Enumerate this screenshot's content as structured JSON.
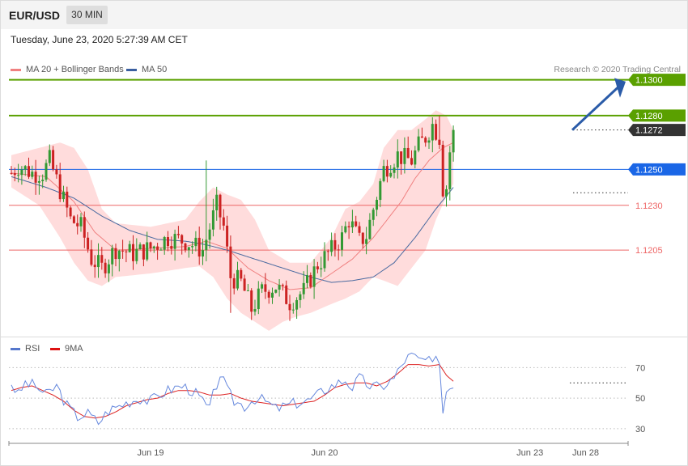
{
  "header": {
    "symbol": "EUR/USD",
    "timeframe": "30 MIN",
    "datetime": "Tuesday, June 23, 2020 5:27:39 AM CET"
  },
  "legend": {
    "ma20": "MA 20 + Bollinger Bands",
    "ma50": "MA 50",
    "credit": "Research © 2020 Trading Central"
  },
  "rsi_legend": {
    "rsi": "RSI",
    "ma9": "9MA"
  },
  "colors": {
    "up": "#339933",
    "down": "#cc2222",
    "resistance": "#5aa000",
    "support": "#ee6666",
    "pivot": "#1a66e6",
    "bands": "#ffd6d6",
    "ma20": "#f08080",
    "ma50": "#4a6aa0",
    "rsi": "#6688dd",
    "rsi_ma": "#dd2222",
    "arrow": "#2a5ba8",
    "current": "#333333"
  },
  "chart_data": [
    {
      "type": "candlestick",
      "symbol": "EUR/USD",
      "timeframe": "30 MIN",
      "x_labels": [
        "Jun 19",
        "Jun 20",
        "Jun 23",
        "Jun 28"
      ],
      "ylim": [
        1.1155,
        1.1312
      ],
      "levels": [
        {
          "label": "1.1300",
          "value": 1.13,
          "kind": "resistance"
        },
        {
          "label": "1.1280",
          "value": 1.128,
          "kind": "resistance"
        },
        {
          "label": "1.1272",
          "value": 1.1272,
          "kind": "current"
        },
        {
          "label": "1.1250",
          "value": 1.125,
          "kind": "pivot"
        },
        {
          "label": "1.1230",
          "value": 1.123,
          "kind": "support"
        },
        {
          "label": "1.1205",
          "value": 1.1205,
          "kind": "support"
        }
      ],
      "waypoints": [
        [
          0,
          1.1248
        ],
        [
          2,
          1.1252
        ],
        [
          6,
          1.1248
        ],
        [
          9,
          1.1248
        ],
        [
          11,
          1.1255
        ],
        [
          13,
          1.1244
        ],
        [
          17,
          1.1222
        ],
        [
          20,
          1.1218
        ],
        [
          23,
          1.12
        ],
        [
          26,
          1.1195
        ],
        [
          30,
          1.1206
        ],
        [
          35,
          1.1203
        ],
        [
          40,
          1.1206
        ],
        [
          45,
          1.1212
        ],
        [
          50,
          1.121
        ],
        [
          55,
          1.1205
        ],
        [
          59,
          1.123
        ],
        [
          61,
          1.1218
        ],
        [
          63,
          1.119
        ],
        [
          66,
          1.1187
        ],
        [
          69,
          1.1172
        ],
        [
          72,
          1.1182
        ],
        [
          76,
          1.1185
        ],
        [
          80,
          1.1176
        ],
        [
          84,
          1.1182
        ],
        [
          88,
          1.1197
        ],
        [
          92,
          1.1205
        ],
        [
          95,
          1.1212
        ],
        [
          97,
          1.1222
        ],
        [
          100,
          1.121
        ],
        [
          102,
          1.1213
        ],
        [
          104,
          1.1228
        ],
        [
          107,
          1.125
        ],
        [
          109,
          1.1254
        ],
        [
          111,
          1.1258
        ],
        [
          113,
          1.1256
        ],
        [
          115,
          1.1255
        ],
        [
          117,
          1.1263
        ],
        [
          119,
          1.1268
        ],
        [
          121,
          1.1275
        ],
        [
          123,
          1.1268
        ],
        [
          124,
          1.1235
        ],
        [
          125,
          1.124
        ],
        [
          126,
          1.126
        ],
        [
          127,
          1.1272
        ]
      ],
      "bands": {
        "upper": [
          [
            0,
            1.1258
          ],
          [
            8,
            1.1262
          ],
          [
            14,
            1.1265
          ],
          [
            18,
            1.1262
          ],
          [
            22,
            1.125
          ],
          [
            26,
            1.1228
          ],
          [
            30,
            1.122
          ],
          [
            40,
            1.1218
          ],
          [
            50,
            1.1222
          ],
          [
            54,
            1.1232
          ],
          [
            58,
            1.124
          ],
          [
            62,
            1.1236
          ],
          [
            66,
            1.1233
          ],
          [
            70,
            1.1222
          ],
          [
            74,
            1.1205
          ],
          [
            80,
            1.1198
          ],
          [
            86,
            1.1198
          ],
          [
            92,
            1.1212
          ],
          [
            96,
            1.1228
          ],
          [
            100,
            1.1232
          ],
          [
            104,
            1.1242
          ],
          [
            107,
            1.1262
          ],
          [
            111,
            1.1272
          ],
          [
            115,
            1.1272
          ],
          [
            119,
            1.1278
          ],
          [
            122,
            1.1283
          ],
          [
            125,
            1.128
          ],
          [
            127,
            1.1272
          ]
        ],
        "lower": [
          [
            0,
            1.124
          ],
          [
            8,
            1.123
          ],
          [
            14,
            1.1212
          ],
          [
            18,
            1.1198
          ],
          [
            22,
            1.1188
          ],
          [
            26,
            1.1185
          ],
          [
            30,
            1.119
          ],
          [
            40,
            1.1192
          ],
          [
            50,
            1.1195
          ],
          [
            54,
            1.1196
          ],
          [
            58,
            1.119
          ],
          [
            62,
            1.1178
          ],
          [
            66,
            1.117
          ],
          [
            70,
            1.1165
          ],
          [
            74,
            1.116
          ],
          [
            78,
            1.1165
          ],
          [
            82,
            1.1168
          ],
          [
            86,
            1.117
          ],
          [
            92,
            1.1175
          ],
          [
            96,
            1.1178
          ],
          [
            100,
            1.1182
          ],
          [
            104,
            1.119
          ],
          [
            107,
            1.1188
          ],
          [
            111,
            1.1185
          ],
          [
            115,
            1.1195
          ],
          [
            119,
            1.1205
          ],
          [
            122,
            1.1222
          ],
          [
            125,
            1.1235
          ],
          [
            127,
            1.1242
          ]
        ],
        "ma20": [
          [
            0,
            1.1248
          ],
          [
            10,
            1.1246
          ],
          [
            18,
            1.1232
          ],
          [
            24,
            1.1215
          ],
          [
            30,
            1.1205
          ],
          [
            40,
            1.1206
          ],
          [
            50,
            1.1207
          ],
          [
            56,
            1.121
          ],
          [
            62,
            1.1206
          ],
          [
            68,
            1.1195
          ],
          [
            74,
            1.1188
          ],
          [
            80,
            1.1183
          ],
          [
            86,
            1.1184
          ],
          [
            92,
            1.1192
          ],
          [
            98,
            1.12
          ],
          [
            104,
            1.1212
          ],
          [
            108,
            1.1222
          ],
          [
            112,
            1.1232
          ],
          [
            116,
            1.1245
          ],
          [
            120,
            1.1255
          ],
          [
            124,
            1.1262
          ],
          [
            127,
            1.1265
          ]
        ],
        "ma50": [
          [
            0,
            1.1246
          ],
          [
            10,
            1.124
          ],
          [
            18,
            1.1234
          ],
          [
            26,
            1.1224
          ],
          [
            34,
            1.1216
          ],
          [
            42,
            1.1211
          ],
          [
            50,
            1.121
          ],
          [
            56,
            1.1208
          ],
          [
            62,
            1.1205
          ],
          [
            70,
            1.12
          ],
          [
            78,
            1.1195
          ],
          [
            86,
            1.119
          ],
          [
            92,
            1.1187
          ],
          [
            98,
            1.1188
          ],
          [
            104,
            1.119
          ],
          [
            110,
            1.1198
          ],
          [
            116,
            1.1212
          ],
          [
            122,
            1.1228
          ],
          [
            127,
            1.124
          ]
        ]
      }
    },
    {
      "type": "line",
      "name": "RSI",
      "series": [
        {
          "name": "RSI",
          "values": [
            [
              0,
              60
            ],
            [
              2,
              52
            ],
            [
              4,
              60
            ],
            [
              7,
              58
            ],
            [
              10,
              52
            ],
            [
              13,
              58
            ],
            [
              16,
              45
            ],
            [
              19,
              38
            ],
            [
              22,
              40
            ],
            [
              25,
              34
            ],
            [
              28,
              42
            ],
            [
              31,
              45
            ],
            [
              34,
              48
            ],
            [
              37,
              50
            ],
            [
              40,
              48
            ],
            [
              43,
              53
            ],
            [
              46,
              56
            ],
            [
              49,
              58
            ],
            [
              52,
              55
            ],
            [
              55,
              48
            ],
            [
              57,
              42
            ],
            [
              58,
              52
            ],
            [
              60,
              66
            ],
            [
              62,
              55
            ],
            [
              64,
              48
            ],
            [
              67,
              45
            ],
            [
              70,
              50
            ],
            [
              73,
              48
            ],
            [
              76,
              43
            ],
            [
              79,
              45
            ],
            [
              82,
              47
            ],
            [
              85,
              48
            ],
            [
              88,
              52
            ],
            [
              91,
              57
            ],
            [
              94,
              60
            ],
            [
              96,
              62
            ],
            [
              98,
              57
            ],
            [
              100,
              63
            ],
            [
              103,
              58
            ],
            [
              106,
              57
            ],
            [
              108,
              60
            ],
            [
              110,
              63
            ],
            [
              113,
              75
            ],
            [
              115,
              78
            ],
            [
              117,
              75
            ],
            [
              119,
              75
            ],
            [
              121,
              72
            ],
            [
              123,
              76
            ],
            [
              124,
              40
            ],
            [
              125,
              55
            ],
            [
              127,
              60
            ]
          ]
        },
        {
          "name": "9MA",
          "values": [
            [
              0,
              55
            ],
            [
              3,
              57
            ],
            [
              6,
              58
            ],
            [
              9,
              55
            ],
            [
              12,
              52
            ],
            [
              15,
              48
            ],
            [
              18,
              42
            ],
            [
              21,
              38
            ],
            [
              24,
              37
            ],
            [
              27,
              38
            ],
            [
              30,
              41
            ],
            [
              33,
              45
            ],
            [
              36,
              47
            ],
            [
              39,
              49
            ],
            [
              42,
              50
            ],
            [
              45,
              53
            ],
            [
              48,
              55
            ],
            [
              51,
              55
            ],
            [
              54,
              54
            ],
            [
              57,
              52
            ],
            [
              60,
              52
            ],
            [
              63,
              53
            ],
            [
              66,
              50
            ],
            [
              69,
              48
            ],
            [
              72,
              47
            ],
            [
              75,
              46
            ],
            [
              78,
              45
            ],
            [
              81,
              46
            ],
            [
              84,
              47
            ],
            [
              87,
              48
            ],
            [
              90,
              52
            ],
            [
              93,
              57
            ],
            [
              96,
              59
            ],
            [
              99,
              60
            ],
            [
              102,
              60
            ],
            [
              105,
              58
            ],
            [
              108,
              61
            ],
            [
              111,
              66
            ],
            [
              114,
              72
            ],
            [
              117,
              72
            ],
            [
              120,
              71
            ],
            [
              123,
              72
            ],
            [
              125,
              65
            ],
            [
              127,
              61
            ]
          ]
        }
      ],
      "levels": [
        {
          "label": "70",
          "value": 70
        },
        {
          "label": "50",
          "value": 50
        },
        {
          "label": "30",
          "value": 30
        }
      ],
      "ylim": [
        22,
        85
      ]
    }
  ]
}
